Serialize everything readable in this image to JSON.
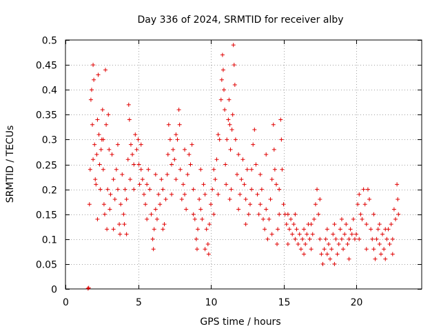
{
  "chart_data": {
    "type": "scatter",
    "title": "Day 336 of 2024, SRMTID for receiver alby",
    "xlabel": "GPS time / hours",
    "ylabel": "SRMTID / TECUs",
    "xlim": [
      0,
      24.5
    ],
    "ylim": [
      0,
      0.5
    ],
    "xticks": [
      0,
      5,
      10,
      15,
      20
    ],
    "yticks": [
      0,
      0.05,
      0.1,
      0.15,
      0.2,
      0.25,
      0.3,
      0.35,
      0.4,
      0.45,
      0.5
    ],
    "grid": true,
    "marker": "+",
    "color": "#e00000",
    "series": [
      {
        "name": "SRMTID",
        "points": [
          [
            1.55,
            0.001
          ],
          [
            1.6,
            0.002
          ],
          [
            1.65,
            0.17
          ],
          [
            1.7,
            0.24
          ],
          [
            1.75,
            0.38
          ],
          [
            1.8,
            0.4
          ],
          [
            1.85,
            0.33
          ],
          [
            1.9,
            0.45
          ],
          [
            1.95,
            0.42
          ],
          [
            2.0,
            0.29
          ],
          [
            2.05,
            0.22
          ],
          [
            2.1,
            0.21
          ],
          [
            2.15,
            0.27
          ],
          [
            2.2,
            0.34
          ],
          [
            2.25,
            0.43
          ],
          [
            2.3,
            0.31
          ],
          [
            2.35,
            0.25
          ],
          [
            2.4,
            0.2
          ],
          [
            2.45,
            0.28
          ],
          [
            2.5,
            0.3
          ],
          [
            2.55,
            0.36
          ],
          [
            2.6,
            0.24
          ],
          [
            2.65,
            0.17
          ],
          [
            2.7,
            0.15
          ],
          [
            2.75,
            0.44
          ],
          [
            2.8,
            0.33
          ],
          [
            2.85,
            0.12
          ],
          [
            2.9,
            0.2
          ],
          [
            2.95,
            0.35
          ],
          [
            3.0,
            0.28
          ],
          [
            3.05,
            0.16
          ],
          [
            3.1,
            0.19
          ],
          [
            3.2,
            0.27
          ],
          [
            3.3,
            0.22
          ],
          [
            3.4,
            0.18
          ],
          [
            3.5,
            0.24
          ],
          [
            3.6,
            0.2
          ],
          [
            3.7,
            0.13
          ],
          [
            3.75,
            0.11
          ],
          [
            3.8,
            0.17
          ],
          [
            3.9,
            0.23
          ],
          [
            4.0,
            0.15
          ],
          [
            4.05,
            0.13
          ],
          [
            4.1,
            0.2
          ],
          [
            4.2,
            0.18
          ],
          [
            4.3,
            0.26
          ],
          [
            4.35,
            0.37
          ],
          [
            4.4,
            0.34
          ],
          [
            4.45,
            0.22
          ],
          [
            4.5,
            0.29
          ],
          [
            4.6,
            0.27
          ],
          [
            4.7,
            0.25
          ],
          [
            4.8,
            0.31
          ],
          [
            4.9,
            0.28
          ],
          [
            5.0,
            0.3
          ],
          [
            5.05,
            0.25
          ],
          [
            5.1,
            0.21
          ],
          [
            5.2,
            0.24
          ],
          [
            5.3,
            0.22
          ],
          [
            5.4,
            0.19
          ],
          [
            5.5,
            0.17
          ],
          [
            5.6,
            0.21
          ],
          [
            5.7,
            0.24
          ],
          [
            5.8,
            0.2
          ],
          [
            5.9,
            0.15
          ],
          [
            6.0,
            0.1
          ],
          [
            6.05,
            0.08
          ],
          [
            6.1,
            0.12
          ],
          [
            6.2,
            0.16
          ],
          [
            6.3,
            0.14
          ],
          [
            6.4,
            0.19
          ],
          [
            6.5,
            0.17
          ],
          [
            6.6,
            0.22
          ],
          [
            6.7,
            0.2
          ],
          [
            6.8,
            0.13
          ],
          [
            6.9,
            0.18
          ],
          [
            7.0,
            0.23
          ],
          [
            7.05,
            0.27
          ],
          [
            7.1,
            0.33
          ],
          [
            7.2,
            0.3
          ],
          [
            7.3,
            0.25
          ],
          [
            7.4,
            0.28
          ],
          [
            7.5,
            0.26
          ],
          [
            7.6,
            0.22
          ],
          [
            7.7,
            0.3
          ],
          [
            7.8,
            0.36
          ],
          [
            7.85,
            0.33
          ],
          [
            7.9,
            0.24
          ],
          [
            8.0,
            0.18
          ],
          [
            8.1,
            0.21
          ],
          [
            8.2,
            0.19
          ],
          [
            8.3,
            0.16
          ],
          [
            8.4,
            0.23
          ],
          [
            8.5,
            0.27
          ],
          [
            8.6,
            0.25
          ],
          [
            8.7,
            0.29
          ],
          [
            8.8,
            0.2
          ],
          [
            8.9,
            0.14
          ],
          [
            9.0,
            0.1
          ],
          [
            9.05,
            0.08
          ],
          [
            9.1,
            0.12
          ],
          [
            9.2,
            0.18
          ],
          [
            9.3,
            0.16
          ],
          [
            9.4,
            0.14
          ],
          [
            9.5,
            0.21
          ],
          [
            9.6,
            0.19
          ],
          [
            9.7,
            0.12
          ],
          [
            9.8,
            0.09
          ],
          [
            9.85,
            0.07
          ],
          [
            9.9,
            0.13
          ],
          [
            10.0,
            0.17
          ],
          [
            10.1,
            0.2
          ],
          [
            10.2,
            0.24
          ],
          [
            10.3,
            0.22
          ],
          [
            10.4,
            0.26
          ],
          [
            10.5,
            0.31
          ],
          [
            10.6,
            0.3
          ],
          [
            10.7,
            0.38
          ],
          [
            10.75,
            0.42
          ],
          [
            10.8,
            0.47
          ],
          [
            10.85,
            0.44
          ],
          [
            10.9,
            0.4
          ],
          [
            10.95,
            0.36
          ],
          [
            11.0,
            0.25
          ],
          [
            11.05,
            0.21
          ],
          [
            11.1,
            0.3
          ],
          [
            11.2,
            0.34
          ],
          [
            11.25,
            0.38
          ],
          [
            11.3,
            0.33
          ],
          [
            11.35,
            0.28
          ],
          [
            11.4,
            0.2
          ],
          [
            11.45,
            0.32
          ],
          [
            11.5,
            0.35
          ],
          [
            11.55,
            0.49
          ],
          [
            11.6,
            0.45
          ],
          [
            11.65,
            0.41
          ],
          [
            11.7,
            0.3
          ],
          [
            11.8,
            0.23
          ],
          [
            11.9,
            0.16
          ],
          [
            12.0,
            0.19
          ],
          [
            12.1,
            0.22
          ],
          [
            12.2,
            0.26
          ],
          [
            12.3,
            0.21
          ],
          [
            12.4,
            0.18
          ],
          [
            12.5,
            0.24
          ],
          [
            12.6,
            0.15
          ],
          [
            12.7,
            0.17
          ],
          [
            12.8,
            0.2
          ],
          [
            12.9,
            0.29
          ],
          [
            13.0,
            0.32
          ],
          [
            13.1,
            0.25
          ],
          [
            13.2,
            0.19
          ],
          [
            13.3,
            0.15
          ],
          [
            13.4,
            0.17
          ],
          [
            13.5,
            0.2
          ],
          [
            13.6,
            0.14
          ],
          [
            13.7,
            0.12
          ],
          [
            13.8,
            0.16
          ],
          [
            13.9,
            0.1
          ],
          [
            14.0,
            0.14
          ],
          [
            14.1,
            0.18
          ],
          [
            14.2,
            0.22
          ],
          [
            14.3,
            0.33
          ],
          [
            14.35,
            0.28
          ],
          [
            14.4,
            0.24
          ],
          [
            14.5,
            0.21
          ],
          [
            14.55,
            0.09
          ],
          [
            14.6,
            0.12
          ],
          [
            14.7,
            0.15
          ],
          [
            14.8,
            0.34
          ],
          [
            14.85,
            0.3
          ],
          [
            14.9,
            0.24
          ],
          [
            15.0,
            0.17
          ],
          [
            15.1,
            0.15
          ],
          [
            15.2,
            0.13
          ],
          [
            15.3,
            0.15
          ],
          [
            15.4,
            0.12
          ],
          [
            15.5,
            0.14
          ],
          [
            15.6,
            0.11
          ],
          [
            15.7,
            0.13
          ],
          [
            15.8,
            0.1
          ],
          [
            15.9,
            0.12
          ],
          [
            16.0,
            0.09
          ],
          [
            16.1,
            0.11
          ],
          [
            16.2,
            0.08
          ],
          [
            16.3,
            0.1
          ],
          [
            16.4,
            0.12
          ],
          [
            16.5,
            0.09
          ],
          [
            16.6,
            0.11
          ],
          [
            16.7,
            0.13
          ],
          [
            16.8,
            0.1
          ],
          [
            16.9,
            0.08
          ],
          [
            17.0,
            0.11
          ],
          [
            17.1,
            0.14
          ],
          [
            17.2,
            0.17
          ],
          [
            17.3,
            0.2
          ],
          [
            17.4,
            0.15
          ],
          [
            17.5,
            0.1
          ],
          [
            17.6,
            0.07
          ],
          [
            17.7,
            0.05
          ],
          [
            17.8,
            0.08
          ],
          [
            17.9,
            0.1
          ],
          [
            18.0,
            0.12
          ],
          [
            18.1,
            0.09
          ],
          [
            18.2,
            0.06
          ],
          [
            18.3,
            0.08
          ],
          [
            18.4,
            0.11
          ],
          [
            18.5,
            0.13
          ],
          [
            18.6,
            0.1
          ],
          [
            18.7,
            0.07
          ],
          [
            18.8,
            0.09
          ],
          [
            18.9,
            0.12
          ],
          [
            19.0,
            0.1
          ],
          [
            19.1,
            0.08
          ],
          [
            19.2,
            0.11
          ],
          [
            19.3,
            0.13
          ],
          [
            19.4,
            0.09
          ],
          [
            19.5,
            0.1
          ],
          [
            19.6,
            0.12
          ],
          [
            19.7,
            0.11
          ],
          [
            19.8,
            0.14
          ],
          [
            19.9,
            0.1
          ],
          [
            20.0,
            0.11
          ],
          [
            20.1,
            0.17
          ],
          [
            20.2,
            0.19
          ],
          [
            20.3,
            0.15
          ],
          [
            20.4,
            0.14
          ],
          [
            20.5,
            0.2
          ],
          [
            20.6,
            0.17
          ],
          [
            20.7,
            0.13
          ],
          [
            20.8,
            0.2
          ],
          [
            20.9,
            0.18
          ],
          [
            21.0,
            0.12
          ],
          [
            21.1,
            0.1
          ],
          [
            21.2,
            0.08
          ],
          [
            21.3,
            0.06
          ],
          [
            21.4,
            0.1
          ],
          [
            21.5,
            0.12
          ],
          [
            21.6,
            0.09
          ],
          [
            21.7,
            0.07
          ],
          [
            21.8,
            0.11
          ],
          [
            21.9,
            0.08
          ],
          [
            22.0,
            0.06
          ],
          [
            22.1,
            0.1
          ],
          [
            22.2,
            0.12
          ],
          [
            22.3,
            0.09
          ],
          [
            22.4,
            0.13
          ],
          [
            22.5,
            0.1
          ],
          [
            22.6,
            0.16
          ],
          [
            22.7,
            0.14
          ],
          [
            22.8,
            0.21
          ],
          [
            22.85,
            0.18
          ],
          [
            22.9,
            0.15
          ],
          [
            1.9,
            0.26
          ],
          [
            2.2,
            0.14
          ],
          [
            2.6,
            0.3
          ],
          [
            3.3,
            0.12
          ],
          [
            3.6,
            0.29
          ],
          [
            4.2,
            0.11
          ],
          [
            4.7,
            0.2
          ],
          [
            5.2,
            0.29
          ],
          [
            5.6,
            0.14
          ],
          [
            6.2,
            0.23
          ],
          [
            6.7,
            0.12
          ],
          [
            7.3,
            0.19
          ],
          [
            7.6,
            0.31
          ],
          [
            8.2,
            0.28
          ],
          [
            8.8,
            0.15
          ],
          [
            9.3,
            0.24
          ],
          [
            9.6,
            0.08
          ],
          [
            10.2,
            0.15
          ],
          [
            10.5,
            0.19
          ],
          [
            11.3,
            0.18
          ],
          [
            11.9,
            0.27
          ],
          [
            12.4,
            0.13
          ],
          [
            12.8,
            0.24
          ],
          [
            13.4,
            0.23
          ],
          [
            13.8,
            0.27
          ],
          [
            14.2,
            0.11
          ],
          [
            14.7,
            0.2
          ],
          [
            15.3,
            0.09
          ],
          [
            15.8,
            0.15
          ],
          [
            16.4,
            0.07
          ],
          [
            16.9,
            0.13
          ],
          [
            17.5,
            0.18
          ],
          [
            18.0,
            0.07
          ],
          [
            18.5,
            0.05
          ],
          [
            19.0,
            0.14
          ],
          [
            19.5,
            0.06
          ],
          [
            20.2,
            0.1
          ],
          [
            20.7,
            0.08
          ],
          [
            21.2,
            0.15
          ],
          [
            21.6,
            0.13
          ],
          [
            22.0,
            0.12
          ],
          [
            22.5,
            0.07
          ]
        ]
      }
    ]
  }
}
